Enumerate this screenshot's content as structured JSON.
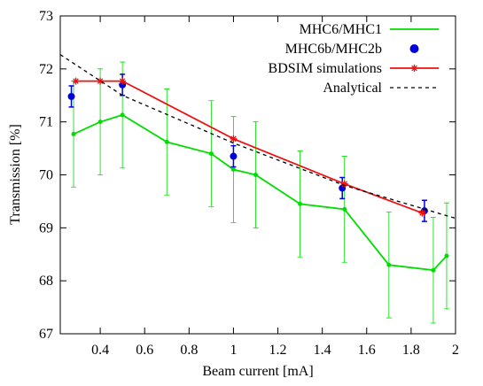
{
  "chart_data": {
    "type": "line",
    "x_label": "Beam current [mA]",
    "y_label": "Transmission [%]",
    "xlim": [
      0.22,
      2
    ],
    "ylim": [
      67,
      73
    ],
    "xticks": [
      0.4,
      0.6,
      0.8,
      1,
      1.2,
      1.4,
      1.6,
      1.8,
      2
    ],
    "yticks": [
      67,
      68,
      69,
      70,
      71,
      72,
      73
    ],
    "legend": "top-right",
    "series": [
      {
        "name": "MHC6/MHC1",
        "color": "#00dd00",
        "line": true,
        "marker": "dot",
        "x": [
          0.28,
          0.4,
          0.5,
          0.7,
          0.9,
          1.0,
          1.1,
          1.3,
          1.5,
          1.7,
          1.9,
          1.96
        ],
        "values": [
          70.77,
          71.0,
          71.13,
          70.62,
          70.4,
          70.1,
          70.0,
          69.45,
          69.35,
          68.3,
          68.2,
          68.47
        ],
        "errors": [
          1,
          1,
          1,
          1,
          1,
          1,
          1,
          1,
          1,
          1,
          1,
          1
        ]
      },
      {
        "name": "MHC6b/MHC2b",
        "color": "#0000dd",
        "line": false,
        "marker": "circle",
        "x": [
          0.27,
          0.5,
          1.0,
          1.49,
          1.86
        ],
        "values": [
          71.48,
          71.7,
          70.35,
          69.75,
          69.32
        ],
        "errors": [
          0.2,
          0.2,
          0.2,
          0.2,
          0.2
        ]
      },
      {
        "name": "BDSIM simulations",
        "color": "#ee1111",
        "line": true,
        "marker": "star",
        "x": [
          0.29,
          0.4,
          0.5,
          1.0,
          1.5,
          1.85
        ],
        "values": [
          71.77,
          71.77,
          71.77,
          70.68,
          69.83,
          69.28
        ]
      },
      {
        "name": "Analytical",
        "color": "#000000",
        "line": true,
        "dash": true,
        "marker": "none",
        "x": [
          0.22,
          0.5,
          1.0,
          1.5,
          2.0
        ],
        "values": [
          72.27,
          71.5,
          70.6,
          69.8,
          69.18
        ]
      }
    ]
  }
}
